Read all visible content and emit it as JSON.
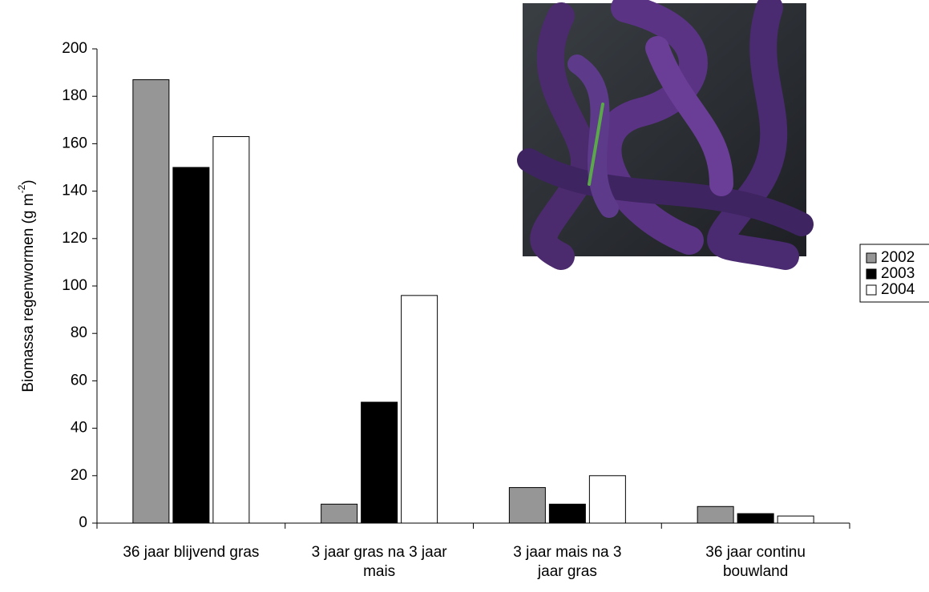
{
  "chart_data": {
    "type": "bar",
    "ylabel": "Biomassa regenwormen (g m",
    "ylabel_sup": "-2",
    "ylabel_end": ")",
    "categories": [
      "36 jaar blijvend gras",
      "3 jaar gras na 3 jaar mais",
      "3 jaar mais na 3 jaar gras",
      "36 jaar continu bouwland"
    ],
    "series": [
      {
        "name": "2002",
        "color": "#969696",
        "values": [
          187,
          8,
          15,
          7
        ]
      },
      {
        "name": "2003",
        "color": "#000000",
        "values": [
          150,
          51,
          8,
          4
        ]
      },
      {
        "name": "2004",
        "color": "#ffffff",
        "values": [
          163,
          96,
          20,
          3
        ]
      }
    ],
    "ylim": [
      0,
      200
    ],
    "yticks": [
      0,
      20,
      40,
      60,
      80,
      100,
      120,
      140,
      160,
      180,
      200
    ],
    "grid": false,
    "legend": "right"
  }
}
